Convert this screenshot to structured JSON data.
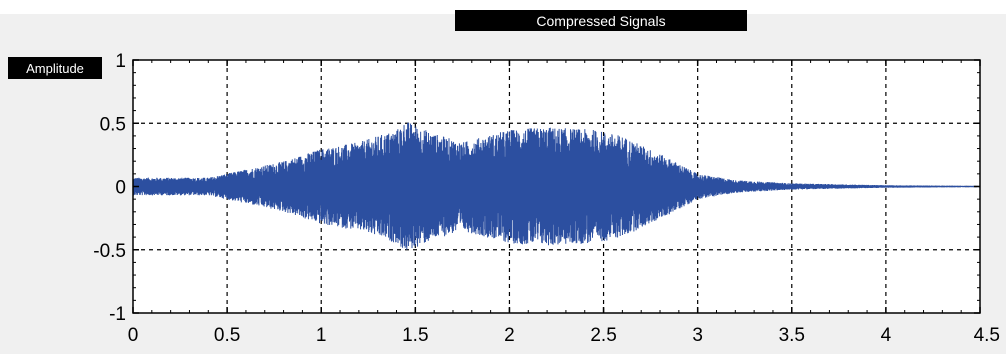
{
  "colors": {
    "signal": "#2c4fa0",
    "title_bg": "#000000",
    "panel_bg": "#f0f0f0",
    "axes_bg": "#ffffff",
    "grid": "#000000"
  },
  "chart_data": {
    "type": "line",
    "title": "Compressed Signals",
    "xlabel": "",
    "ylabel": "Amplitude",
    "xlim": [
      0,
      4.5
    ],
    "ylim": [
      -1,
      1
    ],
    "xticks": [
      "0",
      "0.5",
      "1",
      "1.5",
      "2",
      "2.5",
      "3",
      "3.5",
      "4",
      "4.5"
    ],
    "yticks": [
      "1",
      "0.5",
      "0",
      "-0.5",
      "-1"
    ],
    "grid": true,
    "series": [
      {
        "style": "dense audio waveform",
        "envelope_t": [
          0.0,
          0.4,
          0.8,
          1.0,
          1.2,
          1.4,
          1.45,
          1.6,
          1.75,
          2.0,
          2.2,
          2.45,
          2.6,
          2.85,
          3.0,
          3.2,
          3.5,
          4.0,
          4.5
        ],
        "envelope_amplitude": [
          0.07,
          0.07,
          0.2,
          0.3,
          0.35,
          0.45,
          0.52,
          0.42,
          0.35,
          0.45,
          0.47,
          0.45,
          0.4,
          0.22,
          0.1,
          0.05,
          0.025,
          0.01,
          0.005
        ]
      }
    ]
  }
}
